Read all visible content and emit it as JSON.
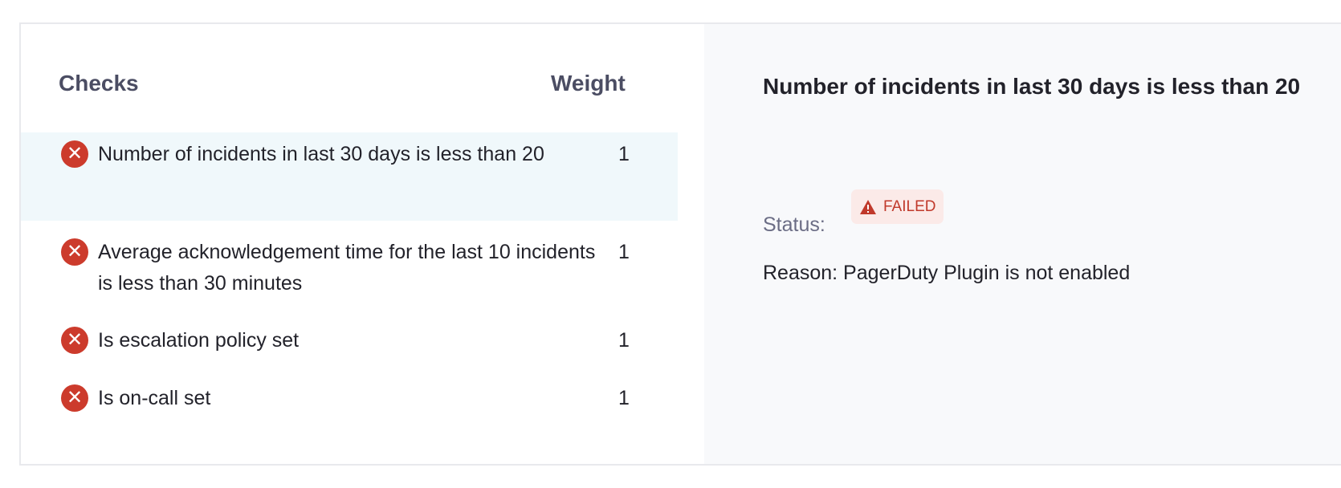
{
  "checks_table": {
    "header_checks": "Checks",
    "header_weight": "Weight",
    "rows": [
      {
        "label": "Number of incidents in last 30 days is less than 20",
        "weight": "1",
        "status_icon": "x-circle-icon",
        "selected": true
      },
      {
        "label": "Average acknowledgement time for the last 10 incidents is less than 30 minutes",
        "weight": "1",
        "status_icon": "x-circle-icon",
        "selected": false
      },
      {
        "label": "Is escalation policy set",
        "weight": "1",
        "status_icon": "x-circle-icon",
        "selected": false
      },
      {
        "label": "Is on-call set",
        "weight": "1",
        "status_icon": "x-circle-icon",
        "selected": false
      }
    ]
  },
  "detail": {
    "title": "Number of incidents in last 30 days is less than 20",
    "status_label": "Status:",
    "status_value": "FAILED",
    "status_icon": "warning-triangle-icon",
    "reason": "Reason: PagerDuty Plugin is not enabled"
  },
  "colors": {
    "failed": "#cc3b2c",
    "selected_row": "#f0f8fb",
    "detail_bg": "#f8f9fb"
  }
}
